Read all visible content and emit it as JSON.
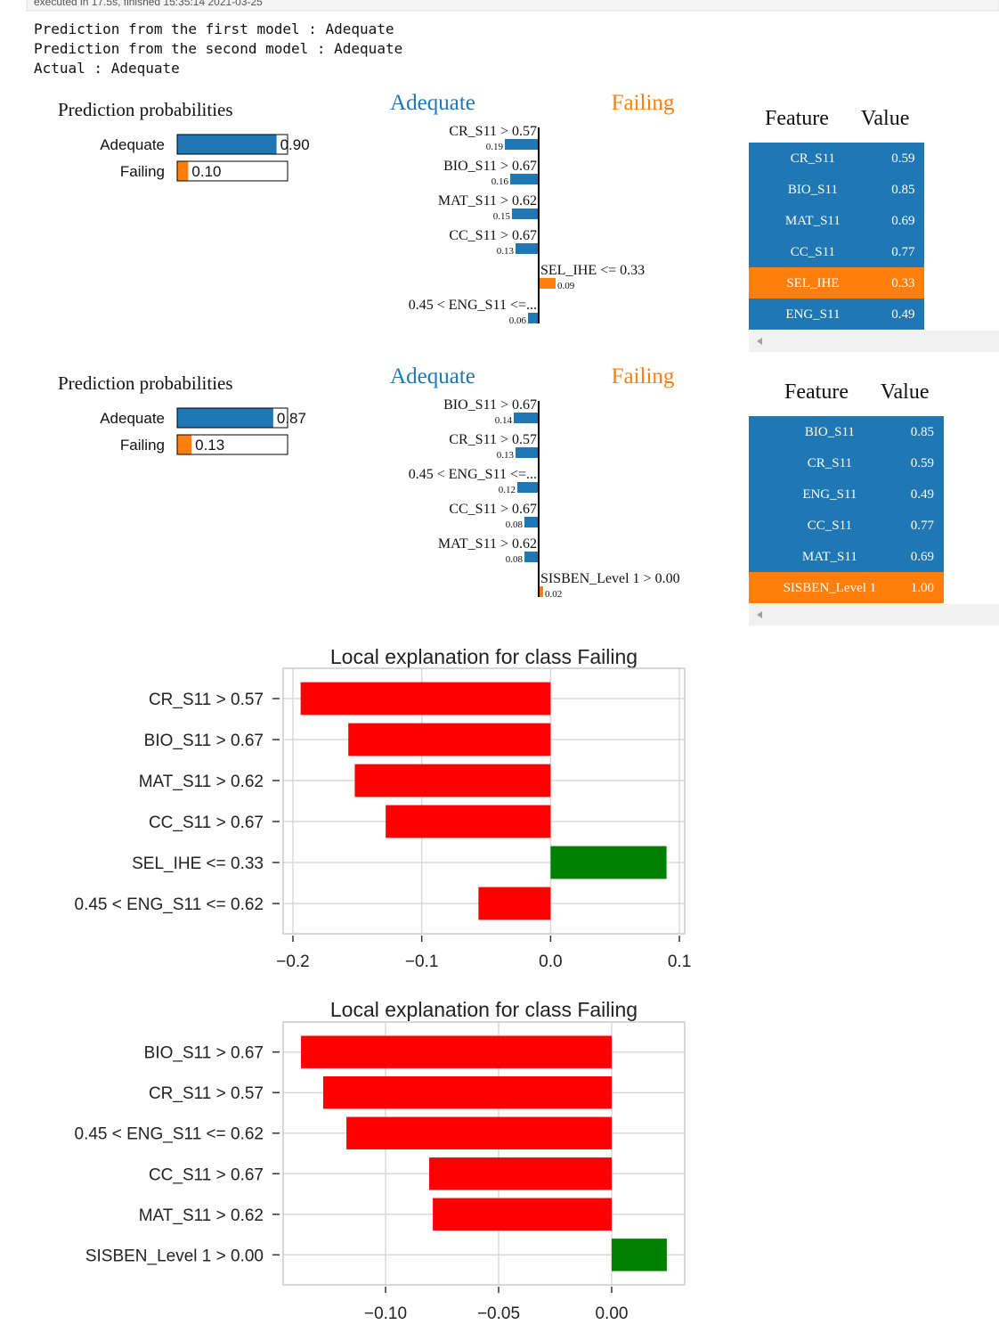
{
  "cell_status": "executed in 17.5s, finished 15:35:14 2021-03-25",
  "output_lines": [
    "Prediction from the first model : Adequate",
    "Prediction from the second model : Adequate",
    "Actual :   Adequate"
  ],
  "explanations": [
    {
      "probabilities": {
        "title": "Prediction probabilities",
        "classes": [
          "Adequate",
          "Failing"
        ],
        "values": [
          0.9,
          0.1
        ],
        "value_labels": [
          "0.90",
          "0.10"
        ],
        "colors": [
          "#1f77b4",
          "#ff7f0e"
        ]
      },
      "weights": {
        "classes": [
          "Adequate",
          "Failing"
        ],
        "colors": [
          "#1f77b4",
          "#ff7f0e"
        ],
        "features": [
          "CR_S11 > 0.57",
          "BIO_S11 > 0.67",
          "MAT_S11 > 0.62",
          "CC_S11 > 0.67",
          "SEL_IHE <= 0.33",
          "0.45 < ENG_S11 <=..."
        ],
        "values": [
          -0.19,
          -0.16,
          -0.15,
          -0.13,
          0.09,
          -0.06
        ],
        "value_labels": [
          "0.19",
          "0.16",
          "0.15",
          "0.13",
          "0.09",
          "0.06"
        ]
      },
      "table": {
        "columns": [
          "Feature",
          "Value"
        ],
        "rows": [
          [
            "CR_S11",
            "0.59"
          ],
          [
            "BIO_S11",
            "0.85"
          ],
          [
            "MAT_S11",
            "0.69"
          ],
          [
            "CC_S11",
            "0.77"
          ],
          [
            "SEL_IHE",
            "0.33"
          ],
          [
            "ENG_S11",
            "0.49"
          ]
        ],
        "row_colors": [
          "#1f77b4",
          "#1f77b4",
          "#1f77b4",
          "#1f77b4",
          "#ff7f0e",
          "#1f77b4"
        ]
      }
    },
    {
      "probabilities": {
        "title": "Prediction probabilities",
        "classes": [
          "Adequate",
          "Failing"
        ],
        "values": [
          0.87,
          0.13
        ],
        "value_labels": [
          "0.87",
          "0.13"
        ],
        "colors": [
          "#1f77b4",
          "#ff7f0e"
        ]
      },
      "weights": {
        "classes": [
          "Adequate",
          "Failing"
        ],
        "colors": [
          "#1f77b4",
          "#ff7f0e"
        ],
        "features": [
          "BIO_S11 > 0.67",
          "CR_S11 > 0.57",
          "0.45 < ENG_S11 <=...",
          "CC_S11 > 0.67",
          "MAT_S11 > 0.62",
          "SISBEN_Level 1 > 0.00"
        ],
        "values": [
          -0.14,
          -0.13,
          -0.12,
          -0.08,
          -0.08,
          0.02
        ],
        "value_labels": [
          "0.14",
          "0.13",
          "0.12",
          "0.08",
          "0.08",
          "0.02"
        ]
      },
      "table": {
        "columns": [
          "Feature",
          "Value"
        ],
        "rows": [
          [
            "BIO_S11",
            "0.85"
          ],
          [
            "CR_S11",
            "0.59"
          ],
          [
            "ENG_S11",
            "0.49"
          ],
          [
            "CC_S11",
            "0.77"
          ],
          [
            "MAT_S11",
            "0.69"
          ],
          [
            "SISBEN_Level 1",
            "1.00"
          ]
        ],
        "row_colors": [
          "#1f77b4",
          "#1f77b4",
          "#1f77b4",
          "#1f77b4",
          "#1f77b4",
          "#ff7f0e"
        ]
      }
    }
  ],
  "chart_data": [
    {
      "type": "barh",
      "title": "Local explanation for class Failing",
      "categories": [
        "CR_S11 > 0.57",
        "BIO_S11 > 0.67",
        "MAT_S11 > 0.62",
        "CC_S11 > 0.67",
        "SEL_IHE <= 0.33",
        "0.45 < ENG_S11 <= 0.62"
      ],
      "values": [
        -0.194,
        -0.157,
        -0.152,
        -0.128,
        0.09,
        -0.056
      ],
      "negative_color": "red",
      "positive_color": "green",
      "xlim": [
        -0.2076,
        0.1041
      ],
      "xticks": [
        {
          "value": -0.2,
          "label": "−0.2"
        },
        {
          "value": -0.1,
          "label": "−0.1"
        },
        {
          "value": 0,
          "label": "0.0"
        },
        0.1
      ],
      "grid": true
    },
    {
      "type": "barh",
      "title": "Local explanation for class Failing",
      "categories": [
        "BIO_S11 > 0.67",
        "CR_S11 > 0.57",
        "0.45 < ENG_S11 <= 0.62",
        "CC_S11 > 0.67",
        "MAT_S11 > 0.62",
        "SISBEN_Level 1 > 0.00"
      ],
      "values": [
        -0.1374,
        -0.1276,
        -0.1173,
        -0.0807,
        -0.0791,
        0.0244
      ],
      "negative_color": "red",
      "positive_color": "green",
      "xlim": [
        -0.1453,
        0.0323
      ],
      "xticks": [
        {
          "value": -0.1,
          "label": "−0.10"
        },
        {
          "value": -0.05,
          "label": "−0.05"
        },
        {
          "value": 0,
          "label": "0.00"
        }
      ],
      "grid": true
    }
  ]
}
